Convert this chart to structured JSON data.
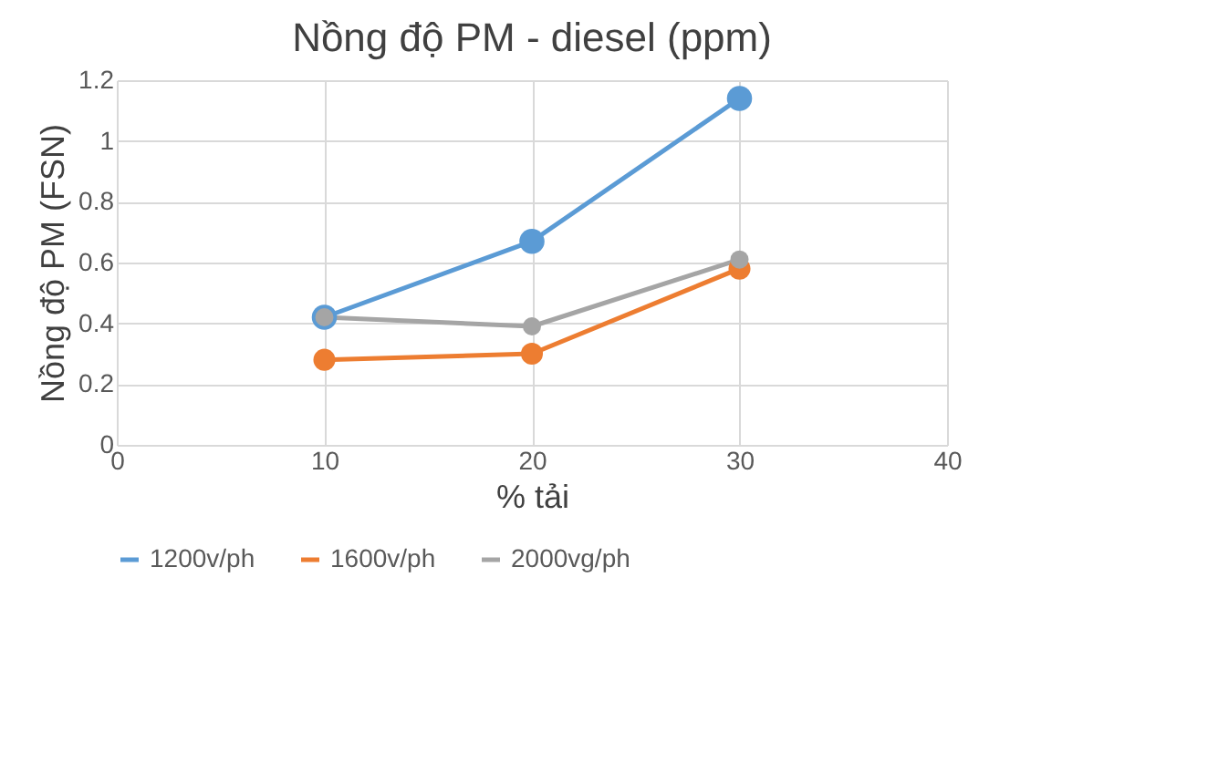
{
  "chart_data": {
    "type": "line",
    "title": "Nồng độ PM - diesel (ppm)",
    "xlabel": "% tải",
    "ylabel": "Nồng độ PM (FSN)",
    "x": [
      10,
      20,
      30
    ],
    "series": [
      {
        "name": "1200v/ph",
        "color": "#5b9bd5",
        "values": [
          0.42,
          0.67,
          1.14
        ]
      },
      {
        "name": "1600v/ph",
        "color": "#ed7d31",
        "values": [
          0.28,
          0.3,
          0.58
        ]
      },
      {
        "name": "2000vg/ph",
        "color": "#a5a5a5",
        "values": [
          0.42,
          0.39,
          0.61
        ]
      }
    ],
    "xlim": [
      0,
      40
    ],
    "xticks": [
      0,
      10,
      20,
      30,
      40
    ],
    "ylim": [
      0,
      1.2
    ],
    "yticks": [
      0,
      0.2,
      0.4,
      0.6,
      0.8,
      1,
      1.2
    ],
    "grid": true,
    "legend": "bottom",
    "marker": "circle",
    "line_style": "solid"
  }
}
